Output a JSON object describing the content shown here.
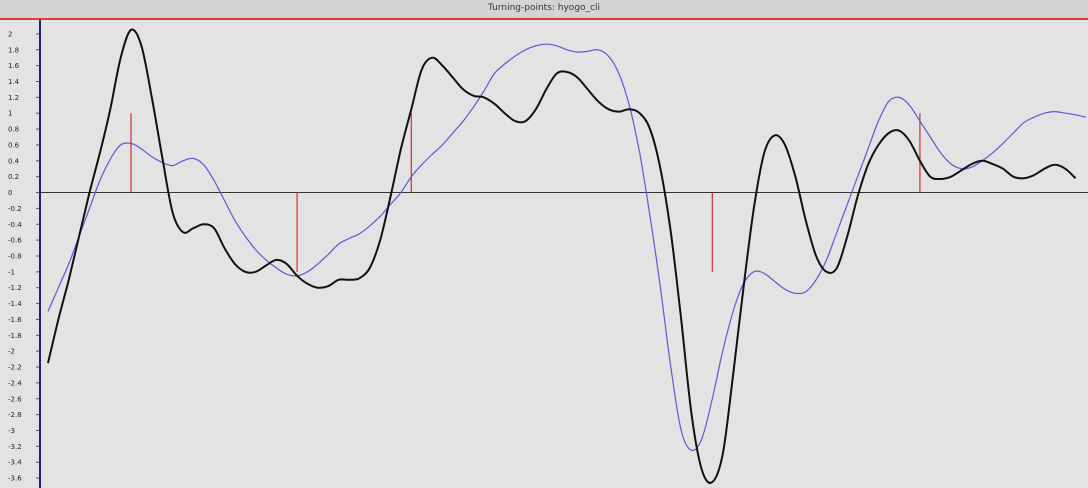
{
  "window": {
    "title": "Turning-points: hyogo_cli"
  },
  "chart_data": {
    "type": "line",
    "title": "Turning-points: hyogo_cli",
    "xlabel": "",
    "ylabel": "",
    "ylim": [
      -3.7,
      2.15
    ],
    "y_ticks": [
      2,
      1.8,
      1.6,
      1.4,
      1.2,
      1,
      0.8,
      0.6,
      0.4,
      0.2,
      0,
      -0.2,
      -0.4,
      -0.6,
      -0.8,
      -1,
      -1.2,
      -1.4,
      -1.6,
      -1.8,
      -2,
      -2.2,
      -2.4,
      -2.6,
      -2.8,
      -3,
      -3.2,
      -3.4,
      -3.6
    ],
    "y_tick_labels": [
      "2",
      "1.8",
      "1.6",
      "1.4",
      "1.2",
      "1",
      "0.8",
      "0.6",
      "0.4",
      "0.2",
      "0",
      "-0.2",
      "-0.4",
      "-0.6",
      "-0.8",
      "-1",
      "-1.2",
      "-1.4",
      "-1.6",
      "-1.8",
      "-2",
      "-2.2",
      "-2.4",
      "-2.6",
      "-2.8",
      "-3",
      "-3.2",
      "-3.4",
      "-3.6"
    ],
    "x_range": [
      0,
      100
    ],
    "zero_line": true,
    "grid": false,
    "series": [
      {
        "color": "#111111",
        "stroke_width": 2,
        "x": [
          0,
          1,
          2,
          3,
          4,
          5,
          6,
          7,
          8,
          9,
          10,
          11,
          12,
          13,
          14,
          15,
          16,
          17,
          18,
          19,
          20,
          21,
          22,
          23,
          24,
          25,
          26,
          27,
          28,
          29,
          30,
          31,
          32,
          33,
          34,
          35,
          36,
          37,
          38,
          39,
          40,
          41,
          42,
          43,
          44,
          45,
          46,
          47,
          48,
          49,
          50,
          51,
          52,
          53,
          54,
          55,
          56,
          57,
          58,
          59,
          60,
          61,
          62,
          63,
          64,
          65,
          66,
          67,
          68,
          69,
          70,
          71,
          72,
          73,
          74,
          75,
          76,
          77,
          78,
          79,
          80,
          81,
          82,
          83,
          84,
          85,
          86,
          87,
          88,
          89,
          90,
          91,
          92,
          93,
          94,
          95,
          96,
          97,
          98,
          99
        ],
        "values": [
          -2.15,
          -1.6,
          -1.1,
          -0.55,
          0.0,
          0.5,
          1.05,
          1.7,
          2.05,
          1.85,
          1.2,
          0.45,
          -0.25,
          -0.5,
          -0.45,
          -0.4,
          -0.45,
          -0.7,
          -0.9,
          -1.0,
          -1.0,
          -0.92,
          -0.85,
          -0.9,
          -1.05,
          -1.15,
          -1.2,
          -1.18,
          -1.1,
          -1.1,
          -1.08,
          -0.95,
          -0.6,
          -0.05,
          0.55,
          1.05,
          1.55,
          1.7,
          1.6,
          1.45,
          1.3,
          1.22,
          1.2,
          1.12,
          1.0,
          0.9,
          0.9,
          1.05,
          1.3,
          1.5,
          1.52,
          1.45,
          1.3,
          1.15,
          1.05,
          1.02,
          1.05,
          1.0,
          0.8,
          0.3,
          -0.5,
          -1.6,
          -2.8,
          -3.5,
          -3.65,
          -3.3,
          -2.3,
          -1.2,
          -0.2,
          0.5,
          0.72,
          0.6,
          0.2,
          -0.35,
          -0.8,
          -1.0,
          -0.95,
          -0.55,
          -0.05,
          0.35,
          0.6,
          0.75,
          0.78,
          0.65,
          0.4,
          0.2,
          0.17,
          0.2,
          0.28,
          0.36,
          0.4,
          0.36,
          0.3,
          0.2,
          0.18,
          0.22,
          0.3,
          0.35,
          0.3,
          0.18
        ]
      },
      {
        "color": "#5a5ad6",
        "stroke_width": 1.2,
        "x": [
          0,
          1,
          2,
          3,
          4,
          5,
          6,
          7,
          8,
          9,
          10,
          11,
          12,
          13,
          14,
          15,
          16,
          17,
          18,
          19,
          20,
          21,
          22,
          23,
          24,
          25,
          26,
          27,
          28,
          29,
          30,
          31,
          32,
          33,
          34,
          35,
          36,
          37,
          38,
          39,
          40,
          41,
          42,
          43,
          44,
          45,
          46,
          47,
          48,
          49,
          50,
          51,
          52,
          53,
          54,
          55,
          56,
          57,
          58,
          59,
          60,
          61,
          62,
          63,
          64,
          65,
          66,
          67,
          68,
          69,
          70,
          71,
          72,
          73,
          74,
          75,
          76,
          77,
          78,
          79,
          80,
          81,
          82,
          83,
          84,
          85,
          86,
          87,
          88,
          89,
          90,
          91,
          92,
          93,
          94,
          95,
          96,
          97,
          98,
          99,
          100
        ],
        "values": [
          -1.5,
          -1.2,
          -0.9,
          -0.55,
          -0.2,
          0.15,
          0.42,
          0.6,
          0.62,
          0.55,
          0.45,
          0.38,
          0.34,
          0.4,
          0.43,
          0.35,
          0.15,
          -0.1,
          -0.35,
          -0.55,
          -0.72,
          -0.85,
          -0.95,
          -1.03,
          -1.05,
          -1.0,
          -0.9,
          -0.78,
          -0.65,
          -0.58,
          -0.52,
          -0.42,
          -0.3,
          -0.15,
          0.0,
          0.2,
          0.35,
          0.48,
          0.6,
          0.75,
          0.9,
          1.08,
          1.28,
          1.5,
          1.62,
          1.72,
          1.8,
          1.85,
          1.87,
          1.85,
          1.8,
          1.77,
          1.78,
          1.8,
          1.72,
          1.5,
          1.1,
          0.5,
          -0.3,
          -1.2,
          -2.2,
          -3.0,
          -3.25,
          -3.1,
          -2.6,
          -2.0,
          -1.5,
          -1.15,
          -1.0,
          -1.02,
          -1.12,
          -1.22,
          -1.27,
          -1.25,
          -1.1,
          -0.85,
          -0.5,
          -0.15,
          0.2,
          0.55,
          0.9,
          1.15,
          1.2,
          1.1,
          0.9,
          0.7,
          0.5,
          0.36,
          0.3,
          0.32,
          0.4,
          0.5,
          0.62,
          0.75,
          0.88,
          0.95,
          1.0,
          1.02,
          1.0,
          0.98,
          0.95
        ]
      }
    ],
    "turning_points": [
      {
        "x": 8,
        "y": 1
      },
      {
        "x": 24,
        "y": -1
      },
      {
        "x": 35,
        "y": 1
      },
      {
        "x": 64,
        "y": -1
      },
      {
        "x": 84,
        "y": 1
      }
    ],
    "colors": {
      "background": "#e3e3e3",
      "axis": "#23236e",
      "zero_line": "#333333",
      "turning_marker": "#d93a3a"
    }
  }
}
